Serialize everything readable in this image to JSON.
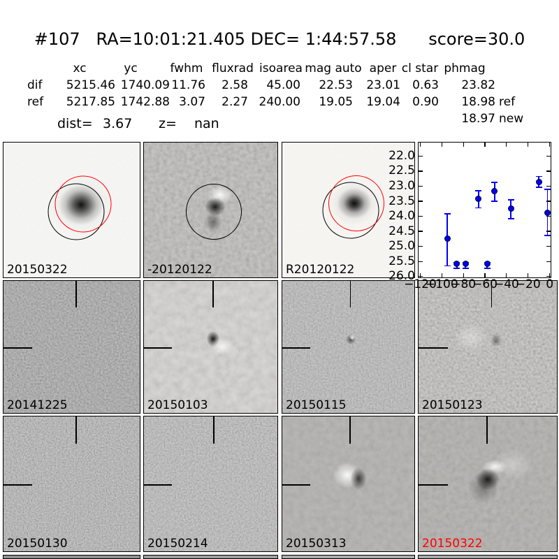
{
  "header": {
    "title": "#107   RA=10:01:21.405 DEC= 1:44:57.58      score=30.0"
  },
  "photometry": {
    "headers": [
      "xc",
      "yc",
      "fwhm",
      "fluxrad",
      "isoarea",
      "mag auto",
      "aper",
      "cl star",
      "phmag"
    ],
    "rows": [
      {
        "label": "dif",
        "values": [
          "5215.46",
          "1740.09",
          "11.76",
          "2.58",
          "45.00",
          "22.53",
          "23.01",
          "0.63",
          "23.82"
        ],
        "suffix": ""
      },
      {
        "label": "ref",
        "values": [
          "5217.85",
          "1742.88",
          "3.07",
          "2.27",
          "240.00",
          "19.05",
          "19.04",
          "0.90",
          "18.98"
        ],
        "suffix": "ref"
      }
    ],
    "extra": {
      "value": "18.97",
      "suffix": "new"
    },
    "dist_label": "dist=",
    "dist_value": "3.67",
    "z_label": "z=",
    "z_value": "nan"
  },
  "cutouts": [
    {
      "label": "20150322",
      "color": "#000000"
    },
    {
      "label": "-20120122",
      "color": "#000000"
    },
    {
      "label": "R20120122",
      "color": "#000000"
    },
    {
      "label": "20141225",
      "color": "#000000"
    },
    {
      "label": "20150103",
      "color": "#000000"
    },
    {
      "label": "20150115",
      "color": "#000000"
    },
    {
      "label": "20150123",
      "color": "#000000"
    },
    {
      "label": "20150130",
      "color": "#000000"
    },
    {
      "label": "20150214",
      "color": "#000000"
    },
    {
      "label": "20150313",
      "color": "#000000"
    },
    {
      "label": "20150322",
      "color": "#ff0000"
    }
  ],
  "chart_data": {
    "type": "scatter",
    "title": "",
    "xlabel": "",
    "ylabel": "",
    "legend": "none",
    "grid": false,
    "y_axis_inverted_magnitudes": true,
    "xlim": [
      -121.6,
      0.9
    ],
    "ylim": [
      21.55,
      26.03
    ],
    "x_ticks": [
      -120,
      -100,
      -80,
      -60,
      -40,
      -20,
      0
    ],
    "x_tick_labels": [
      "−120",
      "−100",
      "−80",
      "−60",
      "−40",
      "−20",
      "0"
    ],
    "y_ticks": [
      22.0,
      22.5,
      23.0,
      23.5,
      24.0,
      24.5,
      25.0,
      25.5,
      26.0
    ],
    "y_tick_labels": [
      "22.0",
      "22.5",
      "23.0",
      "23.5",
      "24.0",
      "24.5",
      "25.0",
      "25.5",
      "26.0"
    ],
    "marker_color": "#0000ee",
    "points": [
      {
        "x": -95,
        "y": 24.75,
        "err_up": 0.83,
        "err_down": 0.9
      },
      {
        "x": -86,
        "y": 25.58,
        "err_up": 0.05,
        "err_down": 0.15
      },
      {
        "x": -78,
        "y": 25.58,
        "err_up": 0.05,
        "err_down": 0.15
      },
      {
        "x": -66,
        "y": 23.42,
        "err_up": 0.27,
        "err_down": 0.3
      },
      {
        "x": -58,
        "y": 25.58,
        "err_up": 0.05,
        "err_down": 0.15
      },
      {
        "x": -51,
        "y": 23.17,
        "err_up": 0.3,
        "err_down": 0.33
      },
      {
        "x": -36,
        "y": 23.75,
        "err_up": 0.29,
        "err_down": 0.33
      },
      {
        "x": -10,
        "y": 22.86,
        "err_up": 0.18,
        "err_down": 0.18
      },
      {
        "x": -2,
        "y": 23.88,
        "err_up": 0.78,
        "err_down": 0.76
      }
    ]
  }
}
